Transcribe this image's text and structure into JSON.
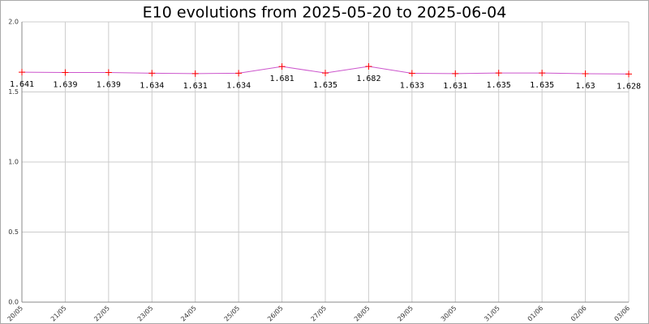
{
  "chart_data": {
    "type": "line",
    "title": "E10 evolutions from 2025-05-20 to 2025-06-04",
    "categories": [
      "20/05",
      "21/05",
      "22/05",
      "23/05",
      "24/05",
      "25/05",
      "26/05",
      "27/05",
      "28/05",
      "29/05",
      "30/05",
      "31/05",
      "01/06",
      "02/06",
      "03/06"
    ],
    "series": [
      {
        "name": "E10",
        "color": "#cc55cc",
        "marker_color": "#ff0000",
        "values": [
          1.641,
          1.639,
          1.639,
          1.634,
          1.631,
          1.634,
          1.681,
          1.635,
          1.682,
          1.633,
          1.631,
          1.635,
          1.635,
          1.63,
          1.628
        ]
      }
    ],
    "ylim": [
      0,
      2
    ],
    "yticks": [
      {
        "value": 0,
        "label": "0.0"
      },
      0.5,
      {
        "value": 1,
        "label": "1.0"
      },
      1.5,
      {
        "value": 2,
        "label": "2.0"
      }
    ],
    "grid": true
  }
}
